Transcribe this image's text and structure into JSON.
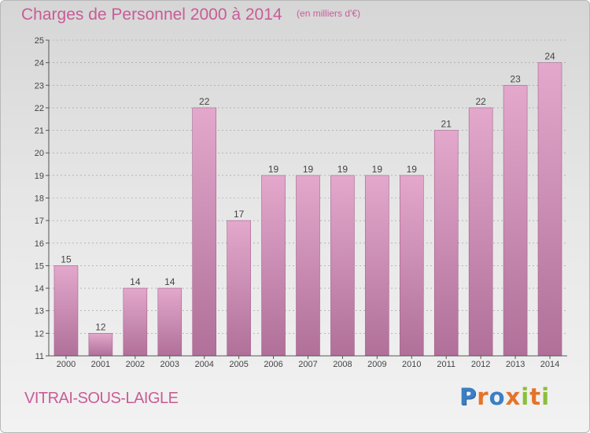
{
  "header": {
    "title": "Charges de Personnel 2000 à 2014",
    "subtitle": "(en milliers d'€)"
  },
  "footer": {
    "town": "VITRAI-SOUS-LAIGLE",
    "logo_text": "Proxiti",
    "logo_colors": [
      "#3a7fc4",
      "#e5732a",
      "#3a7fc4",
      "#e5732a",
      "#8bbf3b",
      "#e5732a",
      "#8bbf3b"
    ]
  },
  "colors": {
    "bar_top": "#e3a8cc",
    "bar_bottom": "#b07099",
    "bar_edge": "#a5628d",
    "accent": "#c85c96",
    "axis": "#555555",
    "grid": "#9a9a9a"
  },
  "chart_data": {
    "type": "bar",
    "categories": [
      "2000",
      "2001",
      "2002",
      "2003",
      "2004",
      "2005",
      "2006",
      "2007",
      "2008",
      "2009",
      "2010",
      "2011",
      "2012",
      "2013",
      "2014"
    ],
    "values": [
      15,
      12,
      14,
      14,
      22,
      17,
      19,
      19,
      19,
      19,
      19,
      21,
      22,
      23,
      24
    ],
    "data_labels": [
      "15",
      "12",
      "14",
      "14",
      "22",
      "17",
      "19",
      "19",
      "19",
      "19",
      "19",
      "21",
      "22",
      "23",
      "24"
    ],
    "yticks": [
      "11",
      "12",
      "13",
      "14",
      "15",
      "16",
      "17",
      "18",
      "19",
      "20",
      "21",
      "22",
      "23",
      "24",
      "25"
    ],
    "ylim": [
      11,
      25
    ],
    "grid": true,
    "title": "Charges de Personnel 2000 à 2014",
    "xlabel": "",
    "ylabel": ""
  }
}
